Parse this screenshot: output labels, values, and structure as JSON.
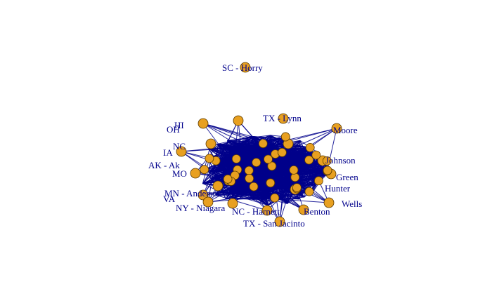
{
  "colors": {
    "edge": "#00008b",
    "node_fill": "#e8a020",
    "node_stroke": "#5a3a00",
    "label": "#00008b",
    "background": "#ffffff"
  },
  "labels": {
    "horry": "SC - Horry",
    "lynn": "TX - Lynn",
    "moore": "Moore",
    "akakins": "AK - Ak",
    "johnson": "Johnson",
    "green": "Green",
    "anderson": "MN - Anderson",
    "niagara": "NY - Niagara",
    "harnett": "NC - Harnett",
    "benton": "Benton",
    "san_jacinto": "TX - San Jacinto",
    "wells": "Wells",
    "hunter": "Hunter",
    "oh": "OH",
    "ia": "IA",
    "mo": "MO",
    "nc": "NC",
    "va": "VA",
    "hi": "HI"
  }
}
